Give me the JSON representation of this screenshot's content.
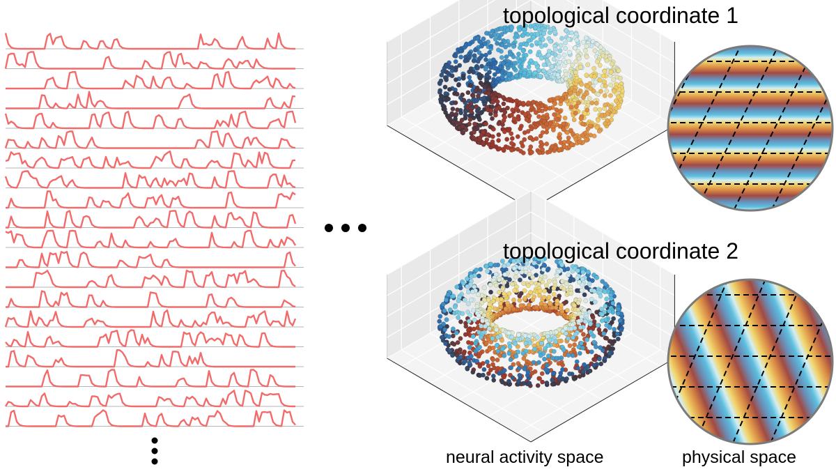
{
  "titles": {
    "coordinate_1": "topological coordinate 1",
    "coordinate_2": "topological coordinate 2"
  },
  "labels": {
    "neural": "neural activity space",
    "physical": "physical space"
  },
  "colors": {
    "trace": "#f26b6b",
    "baseline": "#b4b4b4",
    "phase_colormap": [
      "#f2d56b",
      "#d97a3a",
      "#a13a2e",
      "#3a3a4a",
      "#2f6db0",
      "#5cc0e0",
      "#d8eef0"
    ]
  },
  "panels": {
    "trace_count": 20
  }
}
